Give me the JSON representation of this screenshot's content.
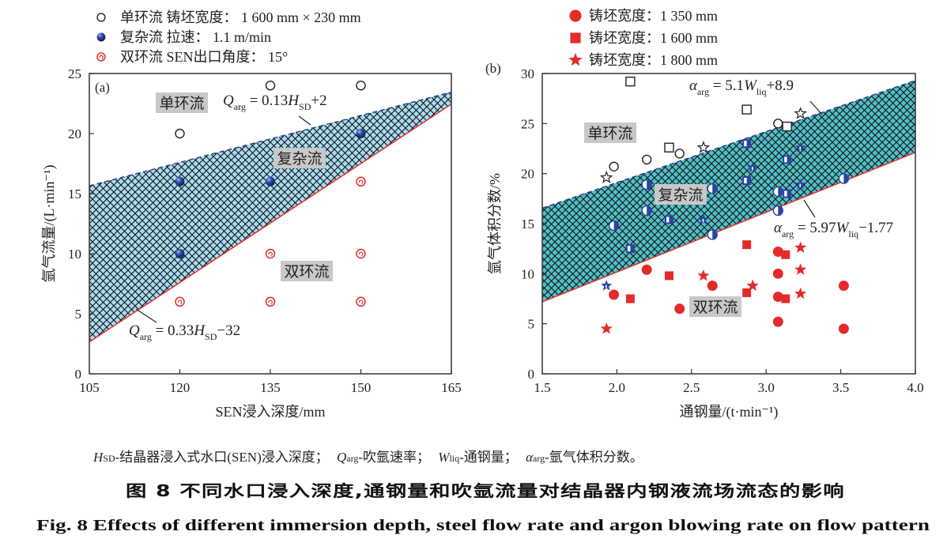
{
  "chart_data": [
    {
      "panel": "(a)",
      "type": "scatter",
      "xlabel": "SEN浸入深度/mm",
      "ylabel": "氩气流量/(L·min⁻¹)",
      "xlim": [
        105,
        165
      ],
      "ylim": [
        0,
        25
      ],
      "xticks": [
        105,
        120,
        135,
        150,
        165
      ],
      "yticks": [
        0,
        5,
        10,
        15,
        20,
        25
      ],
      "legend": [
        {
          "marker": "open-circle",
          "label": "单环流 铸坯宽度： 1 600 mm × 230 mm"
        },
        {
          "marker": "blue-sphere",
          "label": "复杂流 拉速： 1.1 m/min"
        },
        {
          "marker": "red-ring",
          "label": "双环流 SEN出口角度： 15°"
        }
      ],
      "series": [
        {
          "name": "单环流",
          "marker": "open-circle",
          "points": [
            [
              120,
              20
            ],
            [
              135,
              24
            ],
            [
              150,
              24
            ]
          ]
        },
        {
          "name": "复杂流",
          "marker": "blue-sphere",
          "points": [
            [
              120,
              16
            ],
            [
              120,
              10
            ],
            [
              135,
              16
            ],
            [
              150,
              20
            ]
          ]
        },
        {
          "name": "双环流",
          "marker": "red-ring",
          "points": [
            [
              120,
              6
            ],
            [
              135,
              6
            ],
            [
              150,
              6
            ],
            [
              135,
              10
            ],
            [
              150,
              10
            ],
            [
              150,
              16
            ]
          ]
        }
      ],
      "boundaries": {
        "upper": {
          "slope": 0.13,
          "intercept": 2,
          "style": "dashed",
          "color": "#2b3f9a"
        },
        "lower": {
          "slope": 0.33,
          "intercept": -32,
          "style": "solid",
          "color": "#e8302c"
        }
      },
      "band_fill": "#a8dcef",
      "regions": {
        "single": "单环流",
        "complex": "复杂流",
        "double": "双环流"
      },
      "equations": {
        "upper": {
          "v": "Q",
          "vs": "arg",
          "mid": " = 0.13",
          "v2": "H",
          "v2s": "SD",
          "tail": "+2"
        },
        "lower": {
          "v": "Q",
          "vs": "arg",
          "mid": " = 0.33",
          "v2": "H",
          "v2s": "SD",
          "tail": "−32"
        }
      }
    },
    {
      "panel": "(b)",
      "type": "scatter",
      "xlabel": "通钢量/(t·min⁻¹)",
      "ylabel": "氩气体积分数/%",
      "xlim": [
        1.5,
        4.0
      ],
      "ylim": [
        0,
        30
      ],
      "xticks": [
        "1.5",
        "2.0",
        "2.5",
        "3.0",
        "3.5",
        "4.0"
      ],
      "yticks": [
        0,
        5,
        10,
        15,
        20,
        25,
        30
      ],
      "legend": [
        {
          "marker": "circle",
          "label": "铸坯宽度：1 350 mm"
        },
        {
          "marker": "square",
          "label": "铸坯宽度：1 600 mm"
        },
        {
          "marker": "star",
          "label": "铸坯宽度：1 800 mm"
        }
      ],
      "series": [
        {
          "name": "单环流 1350",
          "marker": "open-circle",
          "points": [
            [
              1.98,
              20.7
            ],
            [
              2.2,
              21.4
            ],
            [
              2.42,
              22.0
            ],
            [
              3.08,
              25.0
            ]
          ]
        },
        {
          "name": "单环流 1600",
          "marker": "open-square",
          "points": [
            [
              2.09,
              29.2
            ],
            [
              2.87,
              26.4
            ],
            [
              2.35,
              22.6
            ],
            [
              3.14,
              24.7
            ]
          ]
        },
        {
          "name": "单环流 1800",
          "marker": "open-star",
          "points": [
            [
              1.93,
              19.6
            ],
            [
              2.58,
              22.6
            ],
            [
              3.23,
              26.0
            ]
          ]
        },
        {
          "name": "复杂流 1350",
          "marker": "half-circle",
          "points": [
            [
              1.98,
              14.8
            ],
            [
              2.2,
              18.9
            ],
            [
              2.2,
              16.3
            ],
            [
              2.64,
              18.5
            ],
            [
              2.64,
              13.9
            ],
            [
              3.08,
              18.2
            ],
            [
              3.08,
              16.3
            ],
            [
              3.52,
              19.5
            ]
          ]
        },
        {
          "name": "复杂流 1600",
          "marker": "half-square",
          "points": [
            [
              2.09,
              12.5
            ],
            [
              2.35,
              15.4
            ],
            [
              2.87,
              19.3
            ],
            [
              2.87,
              23.0
            ],
            [
              3.14,
              21.4
            ],
            [
              3.14,
              18.0
            ]
          ]
        },
        {
          "name": "复杂流 1800",
          "marker": "half-star",
          "points": [
            [
              1.93,
              8.8
            ],
            [
              2.58,
              15.4
            ],
            [
              2.91,
              20.6
            ],
            [
              3.23,
              22.6
            ],
            [
              3.23,
              18.9
            ]
          ]
        },
        {
          "name": "双环流 1350",
          "marker": "red-circle",
          "points": [
            [
              1.98,
              7.9
            ],
            [
              2.2,
              10.4
            ],
            [
              2.42,
              6.5
            ],
            [
              2.64,
              8.8
            ],
            [
              3.08,
              12.2
            ],
            [
              3.08,
              10.0
            ],
            [
              3.08,
              7.7
            ],
            [
              3.08,
              5.2
            ],
            [
              3.52,
              8.8
            ],
            [
              3.52,
              4.5
            ]
          ]
        },
        {
          "name": "双环流 1600",
          "marker": "red-square",
          "points": [
            [
              2.09,
              7.5
            ],
            [
              2.35,
              9.8
            ],
            [
              2.87,
              12.9
            ],
            [
              2.87,
              8.1
            ],
            [
              3.13,
              11.9
            ],
            [
              3.13,
              7.5
            ]
          ]
        },
        {
          "name": "双环流 1800",
          "marker": "red-star",
          "points": [
            [
              1.93,
              4.5
            ],
            [
              2.58,
              9.8
            ],
            [
              2.91,
              8.8
            ],
            [
              3.23,
              12.6
            ],
            [
              3.23,
              10.4
            ],
            [
              3.23,
              8.0
            ]
          ]
        }
      ],
      "boundaries": {
        "upper": {
          "slope": 5.1,
          "intercept": 8.9,
          "style": "dashed",
          "color": "#2b3f9a"
        },
        "lower": {
          "slope": 5.97,
          "intercept": -1.77,
          "style": "solid",
          "color": "#e8302c"
        }
      },
      "band_fill": "#52bfc8",
      "regions": {
        "single": "单环流",
        "complex": "复杂流",
        "double": "双环流"
      },
      "equations": {
        "upper": {
          "v": "α",
          "vs": "arg",
          "mid": " = 5.1",
          "v2": "W",
          "v2s": "liq",
          "tail": "+8.9"
        },
        "lower": {
          "v": "α",
          "vs": "arg",
          "mid": " = 5.97",
          "v2": "W",
          "v2s": "liq",
          "tail": "−1.77"
        }
      }
    }
  ],
  "colors": {
    "blue": "#2a44a0",
    "red": "#e52a2a",
    "black": "#222222"
  },
  "caption": {
    "notes": {
      "h": "H",
      "h_sub": "SD",
      "h_text": "-结晶器浸入式水口(SEN)浸入深度；",
      "q": "Q",
      "q_sub": "arg",
      "q_text": "-吹氩速率；",
      "w": "W",
      "w_sub": "liq",
      "w_text": "-通钢量；",
      "a": "α",
      "a_sub": "arg",
      "a_text": "-氩气体积分数。"
    },
    "title_cn": "图 8   不同水口浸入深度,通钢量和吹氩流量对结晶器内钢液流场流态的影响",
    "title_en": "Fig. 8    Effects of different immersion depth, steel flow rate and argon blowing rate on flow pattern"
  }
}
